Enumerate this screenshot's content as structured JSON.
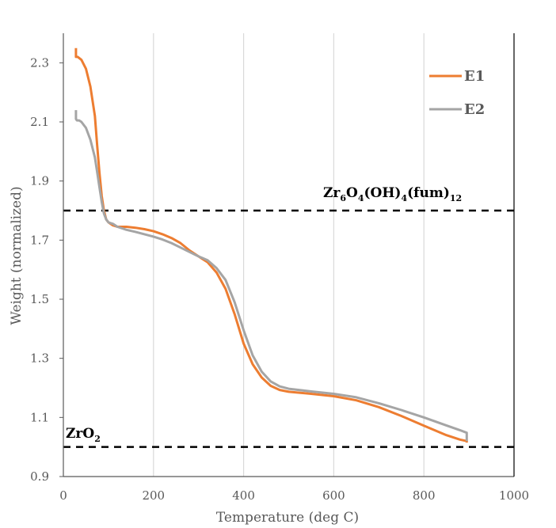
{
  "chart_data": {
    "type": "line",
    "title": "",
    "xlabel": "Temperature (deg C)",
    "ylabel": "Weight (normalized)",
    "xlim": [
      0,
      1000
    ],
    "ylim": [
      0.9,
      2.4
    ],
    "x_ticks": [
      0,
      200,
      400,
      600,
      800,
      1000
    ],
    "y_ticks": [
      0.9,
      1.1,
      1.3,
      1.5,
      1.7,
      1.9,
      2.1,
      2.3
    ],
    "x_tick_labels": [
      "0",
      "200",
      "400",
      "600",
      "800",
      "1000"
    ],
    "y_tick_labels": [
      "0.9",
      "1.1",
      "1.3",
      "1.5",
      "1.7",
      "1.9",
      "2.1",
      "2.3"
    ],
    "grid": "vertical",
    "legend_position": "top-right",
    "series": [
      {
        "name": "E1",
        "color": "#ED7D31",
        "x": [
          28,
          28,
          30,
          32,
          40,
          50,
          60,
          70,
          75,
          80,
          85,
          90,
          95,
          100,
          110,
          120,
          140,
          160,
          180,
          200,
          220,
          240,
          260,
          280,
          300,
          320,
          340,
          360,
          380,
          400,
          420,
          440,
          460,
          480,
          500,
          550,
          600,
          650,
          700,
          750,
          800,
          850,
          880,
          895,
          895
        ],
        "y": [
          2.35,
          2.32,
          2.32,
          2.32,
          2.31,
          2.28,
          2.22,
          2.12,
          2.02,
          1.93,
          1.85,
          1.8,
          1.77,
          1.76,
          1.75,
          1.745,
          1.745,
          1.742,
          1.737,
          1.73,
          1.72,
          1.707,
          1.69,
          1.665,
          1.645,
          1.625,
          1.59,
          1.535,
          1.45,
          1.35,
          1.28,
          1.235,
          1.207,
          1.193,
          1.187,
          1.18,
          1.172,
          1.158,
          1.135,
          1.105,
          1.072,
          1.04,
          1.025,
          1.02,
          1.015
        ]
      },
      {
        "name": "E2",
        "color": "#A5A5A5",
        "x": [
          28,
          28,
          30,
          35,
          40,
          50,
          60,
          70,
          75,
          80,
          85,
          90,
          95,
          100,
          110,
          120,
          140,
          160,
          180,
          200,
          220,
          240,
          260,
          280,
          300,
          320,
          340,
          360,
          380,
          400,
          420,
          440,
          460,
          480,
          500,
          550,
          600,
          650,
          700,
          750,
          800,
          850,
          880,
          895,
          895
        ],
        "y": [
          2.14,
          2.11,
          2.105,
          2.105,
          2.1,
          2.08,
          2.04,
          1.98,
          1.93,
          1.88,
          1.83,
          1.79,
          1.77,
          1.76,
          1.755,
          1.745,
          1.735,
          1.728,
          1.72,
          1.712,
          1.702,
          1.69,
          1.675,
          1.66,
          1.645,
          1.632,
          1.605,
          1.565,
          1.49,
          1.395,
          1.31,
          1.255,
          1.222,
          1.205,
          1.197,
          1.188,
          1.18,
          1.168,
          1.148,
          1.125,
          1.1,
          1.073,
          1.057,
          1.048,
          1.02
        ]
      }
    ],
    "reference_lines": [
      {
        "y": 1.8,
        "label": "Zr6O4(OH)4(fum)12"
      },
      {
        "y": 1.0,
        "label": "ZrO2"
      }
    ]
  }
}
